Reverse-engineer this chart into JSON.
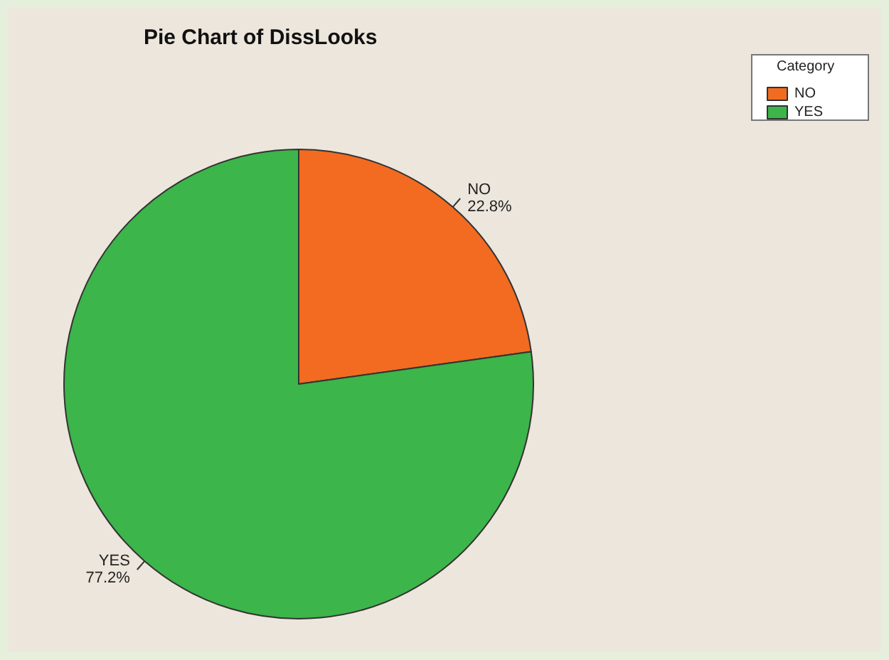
{
  "chart_data": {
    "type": "pie",
    "title": "Pie Chart of DissLooks",
    "categories": [
      "NO",
      "YES"
    ],
    "values": [
      22.8,
      77.2
    ],
    "colors": [
      "#f26b21",
      "#3cb54a"
    ],
    "value_labels": [
      "22.8%",
      "77.2%"
    ],
    "legend": "top right",
    "legend_title": "Category"
  }
}
